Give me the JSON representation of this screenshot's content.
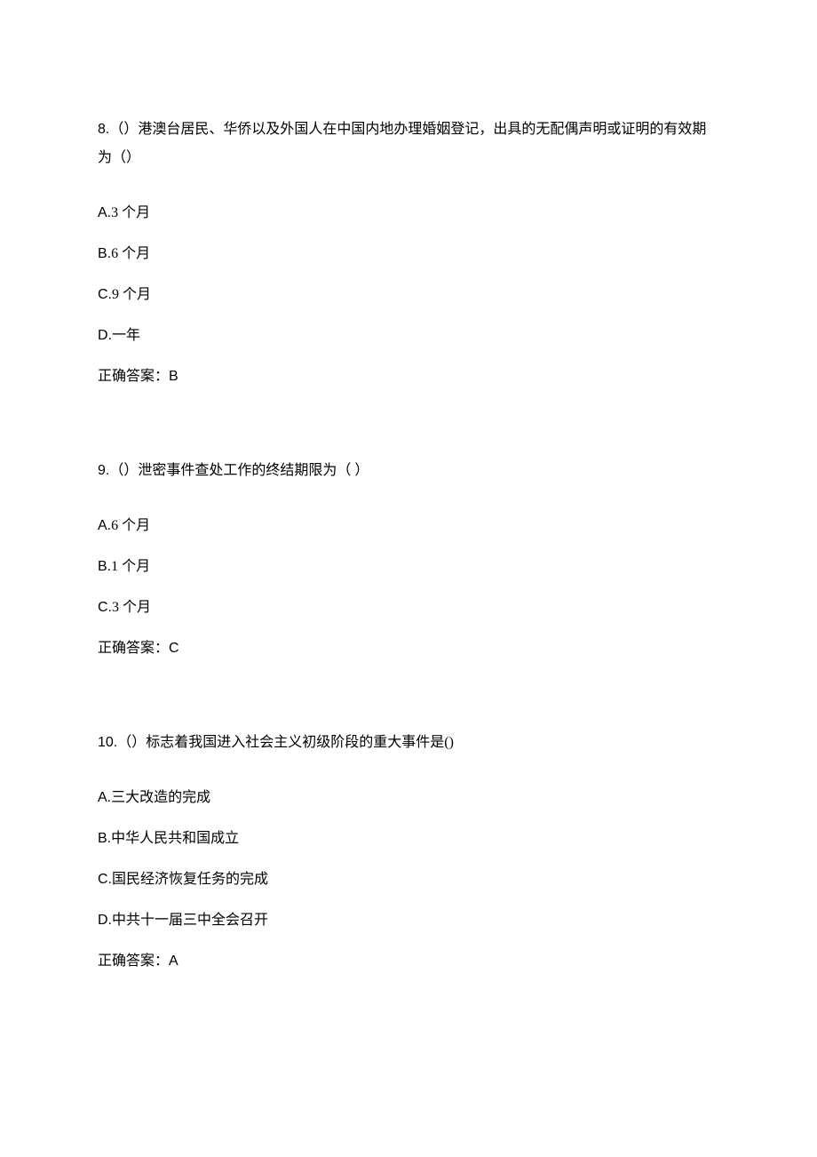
{
  "questions": [
    {
      "number": "8.",
      "stem": "（）港澳台居民、华侨以及外国人在中国内地办理婚姻登记，出具的无配偶声明或证明的有效期为（）",
      "options": [
        {
          "letter": "A.",
          "text": "3 个月"
        },
        {
          "letter": "B.",
          "text": "6 个月"
        },
        {
          "letter": "C.",
          "text": "9 个月"
        },
        {
          "letter": "D.",
          "text": "一年"
        }
      ],
      "answer_label": "正确答案：",
      "answer_value": "B"
    },
    {
      "number": "9.",
      "stem": "（）泄密事件查处工作的终结期限为（  ）",
      "options": [
        {
          "letter": "A.",
          "text": "6  个月"
        },
        {
          "letter": "B.",
          "text": "1  个月"
        },
        {
          "letter": "C.",
          "text": "3  个月"
        }
      ],
      "answer_label": "正确答案：",
      "answer_value": "C"
    },
    {
      "number": "10.",
      "stem": "（）标志着我国进入社会主义初级阶段的重大事件是()",
      "options": [
        {
          "letter": "A.",
          "text": "三大改造的完成"
        },
        {
          "letter": "B.",
          "text": "中华人民共和国成立"
        },
        {
          "letter": "C.",
          "text": "国民经济恢复任务的完成"
        },
        {
          "letter": "D.",
          "text": "中共十一届三中全会召开"
        }
      ],
      "answer_label": "正确答案：",
      "answer_value": "A"
    }
  ]
}
